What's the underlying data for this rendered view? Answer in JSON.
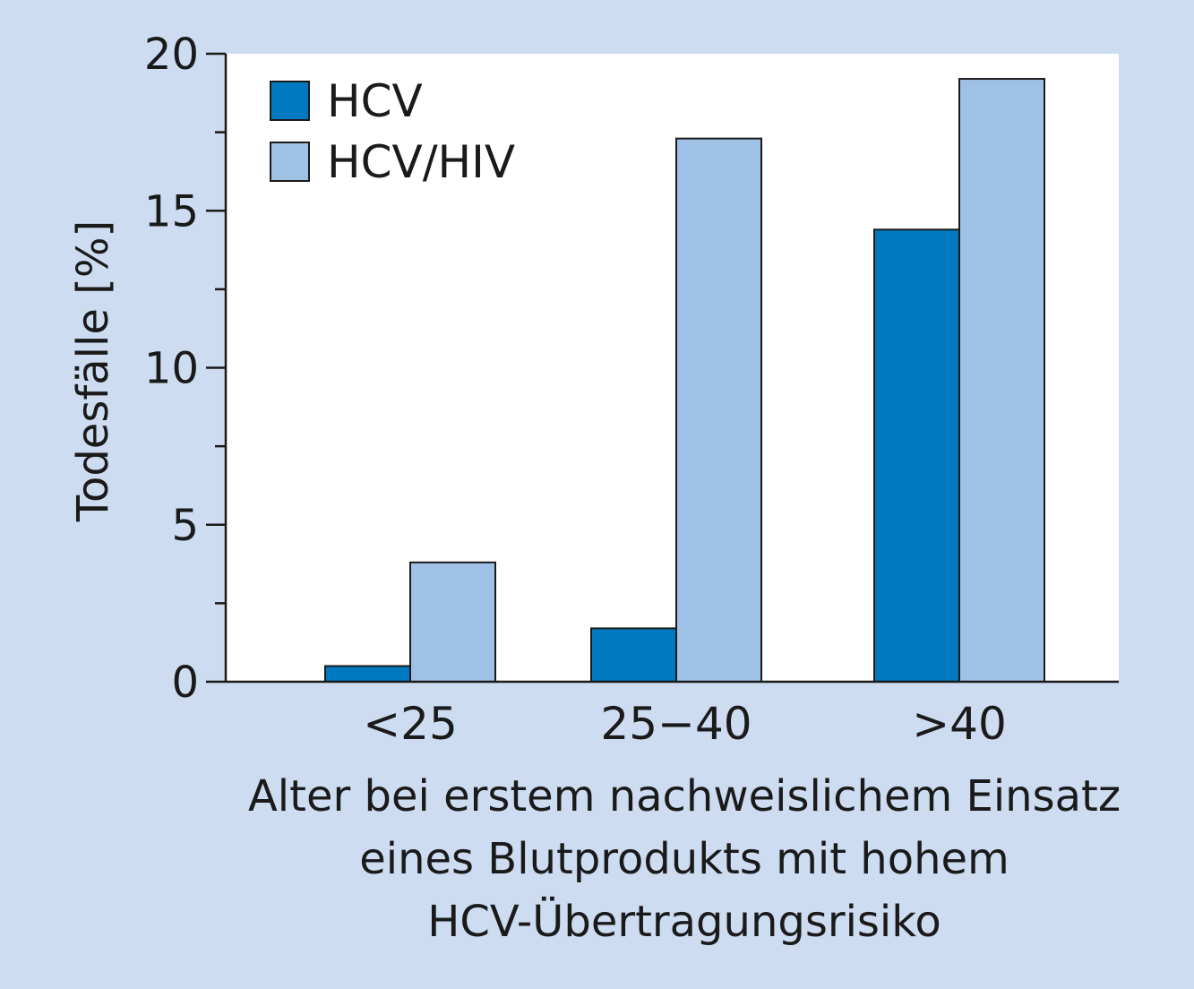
{
  "chart_data": {
    "type": "bar",
    "categories": [
      "<25",
      "25−40",
      ">40"
    ],
    "series": [
      {
        "name": "HCV",
        "values": [
          0.5,
          1.7,
          14.4
        ],
        "color": "#0079c2"
      },
      {
        "name": "HCV/HIV",
        "values": [
          3.8,
          17.3,
          19.2
        ],
        "color": "#9fc1e6"
      }
    ],
    "ylabel": "Todesfälle [%]",
    "xlabel_lines": [
      "Alter bei erstem nachweislichem Einsatz",
      "eines Blutprodukts mit hohem",
      "HCV-Übertragungsrisiko"
    ],
    "ylim": [
      0,
      20
    ],
    "yticks": [
      0,
      5,
      10,
      15,
      20
    ],
    "grid": false,
    "legend_position": "top-left",
    "plot_background": "#ffffff"
  }
}
